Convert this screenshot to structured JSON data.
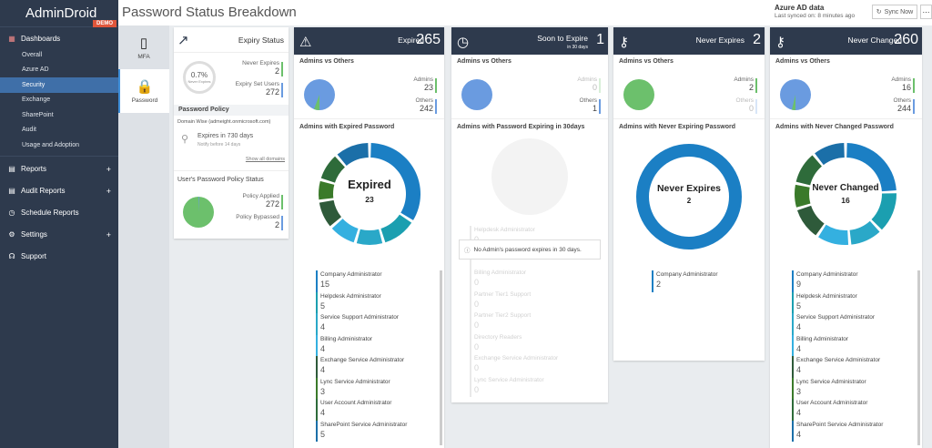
{
  "app": {
    "logo": "AdminDroid",
    "badge": "DEMO"
  },
  "nav": {
    "dashboards": "Dashboards",
    "sub": [
      "Overall",
      "Azure AD",
      "Security",
      "Exchange",
      "SharePoint",
      "Audit",
      "Usage and Adoption"
    ],
    "reports": "Reports",
    "audit_reports": "Audit Reports",
    "schedule_reports": "Schedule Reports",
    "settings": "Settings",
    "support": "Support"
  },
  "header": {
    "title": "Password Status Breakdown",
    "azure_title": "Azure AD data",
    "azure_sync": "Last synced on: 8 minutes ago",
    "sync_label": "Sync Now"
  },
  "tabs": [
    "MFA",
    "Password"
  ],
  "expiry": {
    "title": "Expiry Status",
    "gauge_pct": "0.7%",
    "gauge_label": "Never Expires",
    "ne_label": "Never Expires",
    "ne_val": "2",
    "es_label": "Expiry Set Users",
    "es_val": "272",
    "policy_title": "Password Policy",
    "domain": "Domain Wise (admeight.onmicrosoft.com)",
    "expires_in": "Expires in 730 days",
    "notify": "Notify before 14 days",
    "show_all": "Show all domains",
    "user_policy_title": "User's Password Policy Status",
    "applied_label": "Policy Applied",
    "applied_val": "272",
    "bypassed_label": "Policy Bypassed",
    "bypassed_val": "2"
  },
  "cards": [
    {
      "title": "Expired",
      "count": "265",
      "admins": "23",
      "others": "242",
      "section": "Admins with Expired Password",
      "center_title": "Expired",
      "center_val": "23"
    },
    {
      "title": "Soon to Expire",
      "count": "1",
      "sub": "in 30 days",
      "admins": "0",
      "others": "1",
      "section": "Admins with Password Expiring in 30days",
      "empty_msg": "No Admin's password expires in 30 days."
    },
    {
      "title": "Never Expires",
      "count": "2",
      "admins": "2",
      "others": "0",
      "section": "Admins with Never Expiring Password",
      "center_title": "Never Expires",
      "center_val": "2"
    },
    {
      "title": "Never Changed",
      "count": "260",
      "admins": "16",
      "others": "244",
      "section": "Admins with Never Changed Password",
      "center_title": "Never Changed",
      "center_val": "16"
    }
  ],
  "labels": {
    "admins_vs_others": "Admins vs Others",
    "admins": "Admins",
    "others": "Others"
  },
  "expired_list": [
    {
      "name": "Company Administrator",
      "val": "15",
      "color": "#1b7fc4"
    },
    {
      "name": "Helpdesk Administrator",
      "val": "5",
      "color": "#1b9fb0"
    },
    {
      "name": "Service Support Administrator",
      "val": "4",
      "color": "#2aa8c8"
    },
    {
      "name": "Billing Administrator",
      "val": "4",
      "color": "#34b0e0"
    },
    {
      "name": "Exchange Service Administrator",
      "val": "4",
      "color": "#2e5a3a"
    },
    {
      "name": "Lync Service Administrator",
      "val": "3",
      "color": "#3a7a2a"
    },
    {
      "name": "User Account Administrator",
      "val": "4",
      "color": "#2e6b3a"
    },
    {
      "name": "SharePoint Service Administrator",
      "val": "5",
      "color": "#1b6fa8"
    }
  ],
  "soon_list": [
    {
      "name": "Helpdesk Administrator",
      "val": "0"
    },
    {
      "name": "",
      "val": "0"
    },
    {
      "name": "Billing Administrator",
      "val": "0"
    },
    {
      "name": "Partner Tier1 Support",
      "val": "0"
    },
    {
      "name": "Partner Tier2 Support",
      "val": "0"
    },
    {
      "name": "Directory Readers",
      "val": "0"
    },
    {
      "name": "Exchange Service Administrator",
      "val": "0"
    },
    {
      "name": "Lync Service Administrator",
      "val": "0"
    }
  ],
  "never_exp_list": [
    {
      "name": "Company Administrator",
      "val": "2"
    }
  ],
  "never_changed_list": [
    {
      "name": "Company Administrator",
      "val": "9",
      "color": "#1b7fc4"
    },
    {
      "name": "Helpdesk Administrator",
      "val": "5",
      "color": "#1b9fb0"
    },
    {
      "name": "Service Support Administrator",
      "val": "4",
      "color": "#2aa8c8"
    },
    {
      "name": "Billing Administrator",
      "val": "4",
      "color": "#34b0e0"
    },
    {
      "name": "Exchange Service Administrator",
      "val": "4",
      "color": "#2e5a3a"
    },
    {
      "name": "Lync Service Administrator",
      "val": "3",
      "color": "#3a7a2a"
    },
    {
      "name": "User Account Administrator",
      "val": "4",
      "color": "#2e6b3a"
    },
    {
      "name": "SharePoint Service Administrator",
      "val": "4",
      "color": "#1b6fa8"
    }
  ],
  "colors": {
    "accent": "#3f6fa8",
    "header": "#2e3a4d",
    "green": "#6cc06c",
    "blue": "#6a9be0"
  }
}
